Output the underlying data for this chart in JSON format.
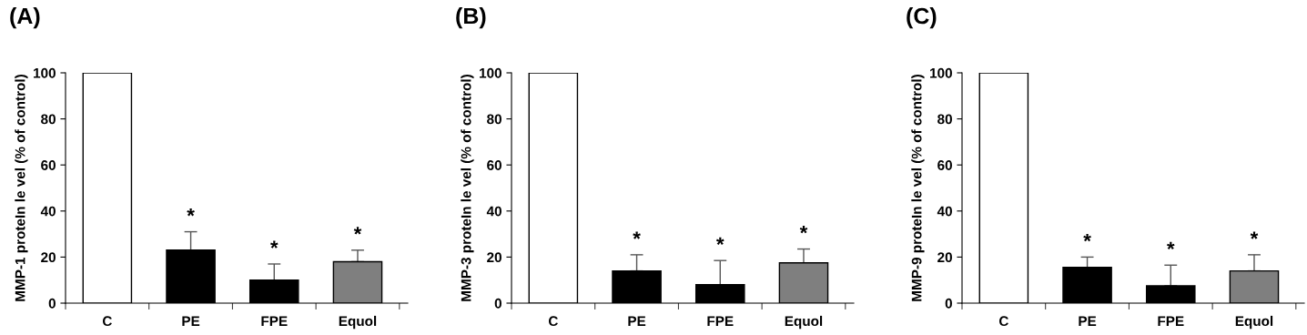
{
  "chart_data": [
    {
      "type": "bar",
      "title": "(A)",
      "ylabel": "MMP-1 proteIn le vel (% of control)",
      "categories": [
        "C",
        "PE",
        "FPE",
        "Equol"
      ],
      "values": [
        100,
        23,
        10,
        18
      ],
      "colors": [
        "#ffffff",
        "#000000",
        "#000000",
        "#7f7f7f"
      ],
      "errors": [
        null,
        [
          23,
          31
        ],
        [
          10,
          17
        ],
        [
          18,
          23
        ]
      ],
      "ylim": [
        0,
        100
      ],
      "yticks": [
        0,
        20,
        40,
        60,
        80,
        100
      ],
      "grid": false,
      "legend": false,
      "annotations": [
        {
          "text": "*",
          "x": "PE",
          "y": 31
        },
        {
          "text": "*",
          "x": "FPE",
          "y": 17
        },
        {
          "text": "*",
          "x": "Equol",
          "y": 23
        }
      ]
    },
    {
      "type": "bar",
      "title": "(B)",
      "ylabel": "MMP-3 proteIn le vel (% of control)",
      "categories": [
        "C",
        "PE",
        "FPE",
        "Equol"
      ],
      "values": [
        100,
        14,
        8,
        17.5
      ],
      "colors": [
        "#ffffff",
        "#000000",
        "#000000",
        "#7f7f7f"
      ],
      "errors": [
        null,
        [
          14,
          21
        ],
        [
          8,
          18.5
        ],
        [
          17.5,
          23.5
        ]
      ],
      "ylim": [
        0,
        100
      ],
      "yticks": [
        0,
        20,
        40,
        60,
        80,
        100
      ],
      "grid": false,
      "legend": false,
      "annotations": [
        {
          "text": "*",
          "x": "PE",
          "y": 21
        },
        {
          "text": "*",
          "x": "FPE",
          "y": 18.5
        },
        {
          "text": "*",
          "x": "Equol",
          "y": 23.5
        }
      ]
    },
    {
      "type": "bar",
      "title": "(C)",
      "ylabel": "MMP-9 proteIn le vel (% of control)",
      "categories": [
        "C",
        "PE",
        "FPE",
        "Equol"
      ],
      "values": [
        100,
        15.5,
        7.5,
        14
      ],
      "colors": [
        "#ffffff",
        "#000000",
        "#000000",
        "#7f7f7f"
      ],
      "errors": [
        null,
        [
          15.5,
          20
        ],
        [
          7.5,
          16.5
        ],
        [
          14,
          21
        ]
      ],
      "ylim": [
        0,
        100
      ],
      "yticks": [
        0,
        20,
        40,
        60,
        80,
        100
      ],
      "grid": false,
      "legend": false,
      "annotations": [
        {
          "text": "*",
          "x": "PE",
          "y": 20
        },
        {
          "text": "*",
          "x": "FPE",
          "y": 16.5
        },
        {
          "text": "*",
          "x": "Equol",
          "y": 21
        }
      ]
    }
  ]
}
